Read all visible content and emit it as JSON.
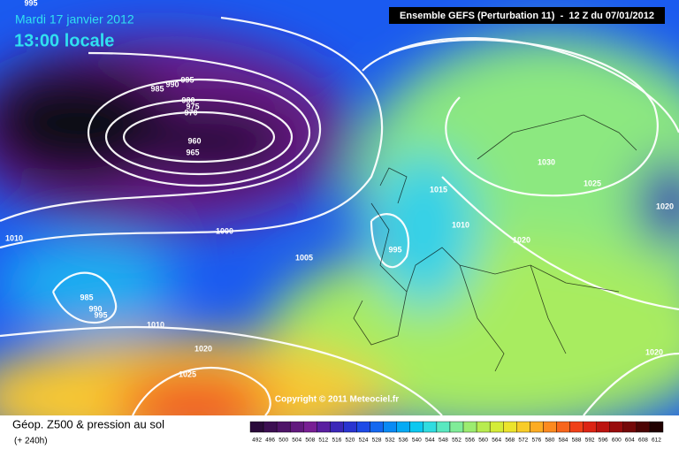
{
  "header": {
    "date": "Mardi 17 janvier 2012",
    "time": "13:00 locale",
    "run": "Ensemble GEFS (Perturbation 11)  -  12 Z du 07/01/2012"
  },
  "footer": {
    "title": "Géop. Z500 & pression au sol",
    "lead": "(+ 240h)",
    "copyright": "Copyright © 2011 Meteociel.fr"
  },
  "isobar_labels": [
    995,
    985,
    990,
    995,
    980,
    975,
    970,
    960,
    965,
    1010,
    1000,
    1005,
    995,
    1015,
    1010,
    1020,
    1030,
    1025,
    1020,
    985,
    990,
    995,
    1010,
    1020,
    1025,
    1020
  ],
  "scale": {
    "values": [
      492,
      496,
      500,
      504,
      508,
      512,
      516,
      520,
      524,
      528,
      532,
      536,
      540,
      544,
      548,
      552,
      556,
      560,
      564,
      568,
      572,
      576,
      580,
      584,
      588,
      592,
      596,
      600,
      604,
      608,
      612
    ],
    "colors": [
      "#2a0a3a",
      "#3c0f52",
      "#4e1468",
      "#62197e",
      "#781f94",
      "#5a1fa0",
      "#3b27b8",
      "#2a34d0",
      "#1e4ae6",
      "#1468f0",
      "#0a8af4",
      "#06aaf4",
      "#0cc8f0",
      "#30dce0",
      "#5ae8c0",
      "#80ec98",
      "#9cec70",
      "#b8ec50",
      "#d4ec38",
      "#ece42c",
      "#f8cc28",
      "#fcac24",
      "#fc8a20",
      "#f8661c",
      "#f04018",
      "#dc2414",
      "#bc1410",
      "#980c0c",
      "#740808",
      "#4c0404",
      "#200000"
    ]
  }
}
